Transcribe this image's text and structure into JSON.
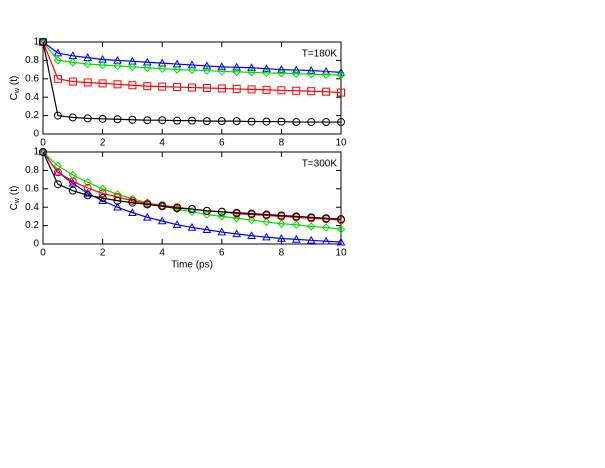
{
  "chart_data": [
    {
      "type": "line",
      "annotation": "T=180K",
      "ylabel": "C",
      "ylabel_sub": "w",
      "ylabel_rest": "(t)",
      "x": [
        0,
        0.5,
        1,
        1.5,
        2,
        2.5,
        3,
        3.5,
        4,
        4.5,
        5,
        5.5,
        6,
        6.5,
        7,
        7.5,
        8,
        8.5,
        9,
        9.5,
        10
      ],
      "xlim": [
        0,
        10
      ],
      "xticks": [
        0,
        2,
        4,
        6,
        8,
        10
      ],
      "ylim": [
        0,
        1
      ],
      "yticks": [
        0,
        0.2,
        0.4,
        0.6,
        0.8,
        1
      ],
      "series": [
        {
          "color": "#0000ff",
          "marker": "triangle",
          "values": [
            1,
            0.88,
            0.85,
            0.83,
            0.81,
            0.8,
            0.79,
            0.78,
            0.77,
            0.76,
            0.75,
            0.74,
            0.73,
            0.725,
            0.72,
            0.71,
            0.7,
            0.695,
            0.69,
            0.68,
            0.67
          ]
        },
        {
          "color": "#00dd00",
          "marker": "diamond",
          "values": [
            1,
            0.8,
            0.78,
            0.76,
            0.75,
            0.74,
            0.73,
            0.72,
            0.71,
            0.7,
            0.695,
            0.69,
            0.68,
            0.675,
            0.67,
            0.665,
            0.66,
            0.655,
            0.65,
            0.645,
            0.64
          ]
        },
        {
          "color": "#ff0000",
          "marker": "square",
          "values": [
            1,
            0.6,
            0.57,
            0.56,
            0.55,
            0.54,
            0.53,
            0.52,
            0.515,
            0.51,
            0.505,
            0.5,
            0.495,
            0.49,
            0.485,
            0.48,
            0.475,
            0.47,
            0.465,
            0.46,
            0.45
          ]
        },
        {
          "color": "#000000",
          "marker": "circle",
          "values": [
            1,
            0.2,
            0.18,
            0.17,
            0.165,
            0.16,
            0.155,
            0.15,
            0.15,
            0.145,
            0.145,
            0.14,
            0.14,
            0.14,
            0.135,
            0.135,
            0.135,
            0.13,
            0.13,
            0.13,
            0.13
          ]
        }
      ]
    },
    {
      "type": "line",
      "annotation": "T=300K",
      "ylabel": "C",
      "ylabel_sub": "w",
      "ylabel_rest": "(t)",
      "xlabel": "Time (ps)",
      "x": [
        0,
        0.5,
        1,
        1.5,
        2,
        2.5,
        3,
        3.5,
        4,
        4.5,
        5,
        5.5,
        6,
        6.5,
        7,
        7.5,
        8,
        8.5,
        9,
        9.5,
        10
      ],
      "xlim": [
        0,
        10
      ],
      "xticks": [
        0,
        2,
        4,
        6,
        8,
        10
      ],
      "ylim": [
        0,
        1
      ],
      "yticks": [
        0,
        0.2,
        0.4,
        0.6,
        0.8,
        1
      ],
      "series": [
        {
          "color": "#0000ff",
          "marker": "triangle",
          "values": [
            1,
            0.78,
            0.66,
            0.55,
            0.47,
            0.4,
            0.34,
            0.29,
            0.25,
            0.21,
            0.18,
            0.155,
            0.13,
            0.11,
            0.09,
            0.075,
            0.06,
            0.05,
            0.04,
            0.03,
            0.02
          ]
        },
        {
          "color": "#00dd00",
          "marker": "diamond",
          "values": [
            1,
            0.85,
            0.75,
            0.67,
            0.6,
            0.54,
            0.49,
            0.45,
            0.41,
            0.38,
            0.35,
            0.32,
            0.3,
            0.28,
            0.26,
            0.24,
            0.22,
            0.21,
            0.19,
            0.18,
            0.16
          ]
        },
        {
          "color": "#ff0000",
          "marker": "circle",
          "values": [
            1,
            0.78,
            0.68,
            0.61,
            0.55,
            0.51,
            0.47,
            0.44,
            0.42,
            0.4,
            0.38,
            0.36,
            0.35,
            0.33,
            0.32,
            0.31,
            0.3,
            0.29,
            0.28,
            0.27,
            0.26
          ]
        },
        {
          "color": "#000000",
          "marker": "circle",
          "values": [
            1,
            0.65,
            0.58,
            0.53,
            0.5,
            0.47,
            0.45,
            0.43,
            0.41,
            0.39,
            0.38,
            0.36,
            0.35,
            0.34,
            0.33,
            0.32,
            0.31,
            0.3,
            0.29,
            0.28,
            0.27
          ]
        }
      ]
    }
  ]
}
